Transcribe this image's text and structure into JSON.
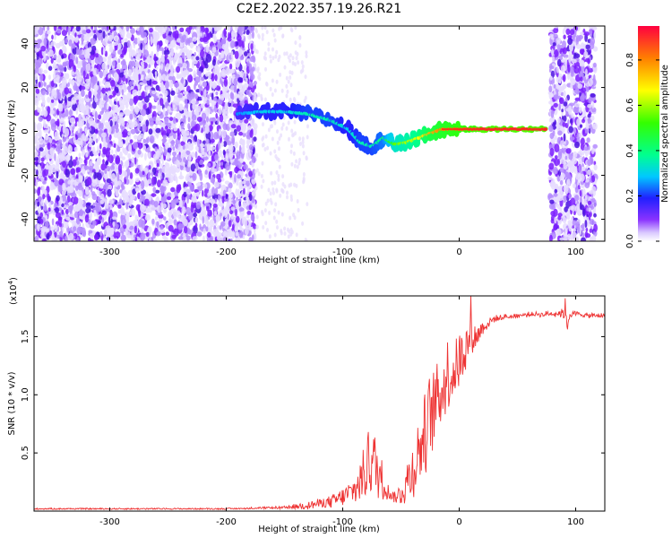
{
  "title": "C2E2.2022.357.19.26.R21",
  "chart_data": [
    {
      "type": "heatmap",
      "xlabel": "Height of straight line (km)",
      "ylabel": "Frequency (Hz)",
      "xlim": [
        -365,
        125
      ],
      "ylim": [
        -50,
        48
      ],
      "xticks": [
        -300,
        -200,
        -100,
        0,
        100
      ],
      "yticks": [
        -40,
        -20,
        0,
        20,
        40
      ],
      "colorbar": {
        "label": "Normalized spectral amplitude",
        "range": [
          0,
          0.95
        ],
        "ticks": [
          0.0,
          0.2,
          0.4,
          0.6,
          0.8
        ]
      },
      "ridge": {
        "x": [
          -190,
          -170,
          -150,
          -130,
          -110,
          -95,
          -85,
          -75,
          -65,
          -55,
          -45,
          -35,
          -25,
          -15,
          0,
          20,
          40,
          60,
          75
        ],
        "frequency": [
          8,
          9,
          9,
          8,
          5,
          1,
          -5,
          -7,
          -3,
          -6,
          -5,
          -3,
          -1,
          1,
          1,
          1,
          1,
          1,
          1
        ],
        "amplitude": [
          0.25,
          0.3,
          0.3,
          0.35,
          0.35,
          0.3,
          0.35,
          0.35,
          0.4,
          0.55,
          0.6,
          0.65,
          0.75,
          0.8,
          0.85,
          0.9,
          0.9,
          0.9,
          0.9
        ]
      },
      "noise_regions": [
        [
          -365,
          -175
        ],
        [
          78,
          117
        ]
      ]
    },
    {
      "type": "line",
      "xlabel": "Height of straight line (km)",
      "ylabel": "SNR (10 * v/v)",
      "y_multiplier": "(x10",
      "y_multiplier_exp": "4",
      "y_multiplier_close": ")",
      "xlim": [
        -365,
        125
      ],
      "ylim": [
        0,
        1.85
      ],
      "xticks": [
        -300,
        -200,
        -100,
        0,
        100
      ],
      "yticks": [
        0.5,
        1.0,
        1.5
      ],
      "ytick_labels": [
        "0.5",
        "1.0",
        "1.5"
      ],
      "series": [
        {
          "color": "#ee3333",
          "x": [
            -365,
            -300,
            -200,
            -150,
            -130,
            -110,
            -100,
            -90,
            -85,
            -80,
            -75,
            -70,
            -65,
            -60,
            -55,
            -50,
            -45,
            -40,
            -35,
            -30,
            -25,
            -20,
            -15,
            -10,
            -5,
            0,
            5,
            10,
            15,
            20,
            30,
            40,
            50,
            60,
            70,
            80,
            90,
            93,
            95,
            100,
            110,
            125
          ],
          "y": [
            0.02,
            0.02,
            0.02,
            0.03,
            0.05,
            0.08,
            0.12,
            0.18,
            0.25,
            0.35,
            0.45,
            0.35,
            0.25,
            0.15,
            0.12,
            0.15,
            0.25,
            0.35,
            0.5,
            0.65,
            0.8,
            0.95,
            1.05,
            1.15,
            1.2,
            1.3,
            1.4,
            1.5,
            1.5,
            1.58,
            1.65,
            1.67,
            1.68,
            1.69,
            1.69,
            1.7,
            1.7,
            1.6,
            1.69,
            1.7,
            1.68,
            1.68
          ],
          "noise": [
            0,
            0,
            0,
            0.01,
            0.03,
            0.05,
            0.08,
            0.12,
            0.2,
            0.25,
            0.3,
            0.25,
            0.15,
            0.05,
            0.05,
            0.1,
            0.2,
            0.25,
            0.3,
            0.35,
            0.4,
            0.3,
            0.3,
            0.3,
            0.25,
            0.25,
            0.2,
            0.15,
            0.1,
            0.06,
            0.03,
            0.02,
            0.02,
            0.02,
            0.02,
            0.02,
            0.05,
            0.05,
            0.02,
            0.02,
            0.02,
            0.02
          ],
          "spikes": [
            {
              "x": -78,
              "y": 0.68
            },
            {
              "x": -10,
              "y": 1.45
            },
            {
              "x": 10,
              "y": 1.85
            },
            {
              "x": 91,
              "y": 1.83
            }
          ]
        }
      ]
    }
  ]
}
